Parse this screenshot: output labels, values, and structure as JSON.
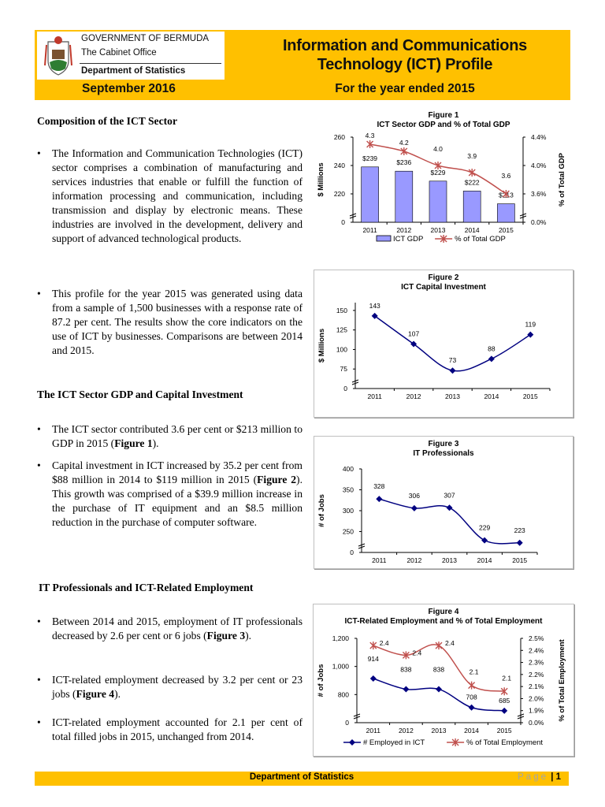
{
  "header": {
    "org_lines": [
      "GOVERNMENT OF BERMUDA",
      "The Cabinet Office",
      "Department of Statistics"
    ],
    "title_line1": "Information and Communications",
    "title_line2": "Technology (ICT) Profile",
    "date": "September 2016",
    "period": "For the year ended 2015",
    "brand_color": "#FFC000"
  },
  "body": {
    "sections": [
      {
        "heading": "Composition of the ICT Sector",
        "bullets": [
          "The Information and Communication Technologies (ICT) sector comprises a combination of manufacturing and services industries that enable or fulfill the function of information processing and communication, including transmission and display by electronic means. These industries are involved in the development, delivery and support of advanced technological products.",
          "This profile for the year 2015 was generated using data from a sample of 1,500 businesses with a response rate of 87.2 per cent. The results show the core indicators on the use of ICT by businesses. Comparisons are between 2014 and 2015."
        ]
      },
      {
        "heading": "The ICT Sector GDP and Capital Investment",
        "bullets": [
          "The ICT sector contributed 3.6 per cent or $213 million to GDP in 2015 (Figure 1).",
          "Capital investment in ICT increased by 35.2 per cent from $88 million in 2014 to $119 million in 2015 (Figure 2). This growth was comprised of a $39.9 million increase in the purchase of IT equipment and an $8.5 million reduction in the purchase of computer software."
        ]
      },
      {
        "heading": "IT Professionals and ICT-Related Employment",
        "bullets": [
          "Between 2014 and 2015, employment of IT professionals decreased by 2.6 per cent or 6 jobs (Figure 3).",
          "ICT-related employment decreased by 3.2 per cent or 23 jobs (Figure 4).",
          "ICT-related employment accounted for 2.1 per cent of total filled jobs in 2015, unchanged from 2014."
        ]
      }
    ]
  },
  "chart_data": [
    {
      "type": "bar+line",
      "title": "Figure 1",
      "subtitle": "ICT Sector GDP and % of Total GDP",
      "categories": [
        "2011",
        "2012",
        "2013",
        "2014",
        "2015"
      ],
      "ylabel": "$ Millions",
      "y2label": "% of Total GDP",
      "ylim": [
        200,
        260
      ],
      "yticks": [
        "0",
        "220",
        "240",
        "260"
      ],
      "ytick_values": [
        200,
        220,
        240,
        260
      ],
      "y2lim": [
        3.2,
        4.4
      ],
      "y2ticks": [
        "0.0%",
        "3.6%",
        "4.0%",
        "4.4%"
      ],
      "y2tick_values": [
        3.2,
        3.6,
        4.0,
        4.4
      ],
      "axis_break": true,
      "legend": "bottom",
      "series": [
        {
          "name": "ICT GDP",
          "kind": "bar",
          "axis": "left",
          "values": [
            239,
            236,
            229,
            222,
            213
          ],
          "labels": [
            "$239",
            "$236",
            "$229",
            "$222",
            "$213"
          ],
          "color": "#9999FF"
        },
        {
          "name": "% of Total GDP",
          "kind": "line",
          "marker": "star",
          "axis": "right",
          "values": [
            4.3,
            4.2,
            4.0,
            3.9,
            3.6
          ],
          "labels": [
            "4.3",
            "4.2",
            "4.0",
            "3.9",
            "3.6"
          ],
          "color": "#C0504D"
        }
      ]
    },
    {
      "type": "line",
      "title": "Figure 2",
      "subtitle": "ICT Capital Investment",
      "categories": [
        "2011",
        "2012",
        "2013",
        "2014",
        "2015"
      ],
      "ylabel": "$ Millions",
      "ylim": [
        50,
        160
      ],
      "yticks": [
        "0",
        "75",
        "100",
        "125",
        "150"
      ],
      "ytick_values": [
        50,
        75,
        100,
        125,
        150
      ],
      "axis_break": true,
      "series": [
        {
          "kind": "line",
          "marker": "diamond",
          "axis": "left",
          "values": [
            143,
            107,
            73,
            88,
            119
          ],
          "labels": [
            "143",
            "107",
            "73",
            "88",
            "119"
          ],
          "color": "#000080"
        }
      ]
    },
    {
      "type": "line",
      "title": "Figure 3",
      "subtitle": "IT Professionals",
      "categories": [
        "2011",
        "2012",
        "2013",
        "2014",
        "2015"
      ],
      "ylabel": "# of Jobs",
      "ylim": [
        200,
        400
      ],
      "yticks": [
        "0",
        "250",
        "300",
        "350",
        "400"
      ],
      "ytick_values": [
        200,
        250,
        300,
        350,
        400
      ],
      "axis_break": true,
      "series": [
        {
          "kind": "line",
          "marker": "diamond",
          "axis": "left",
          "values": [
            328,
            306,
            307,
            229,
            223
          ],
          "labels": [
            "328",
            "306",
            "307",
            "229",
            "223"
          ],
          "color": "#000080"
        }
      ]
    },
    {
      "type": "line",
      "title": "Figure 4",
      "subtitle": "ICT-Related Employment and % of Total Employment",
      "categories": [
        "2011",
        "2012",
        "2013",
        "2014",
        "2015"
      ],
      "ylabel": "# of Jobs",
      "y2label": "% of Total Employment",
      "ylim": [
        600,
        1200
      ],
      "yticks": [
        "0",
        "800",
        "1,000",
        "1,200"
      ],
      "ytick_values": [
        600,
        800,
        1000,
        1200
      ],
      "y2lim": [
        1.8,
        2.5
      ],
      "y2ticks": [
        "0.0%",
        "1.9%",
        "2.0%",
        "2.1%",
        "2.2%",
        "2.3%",
        "2.4%",
        "2.5%"
      ],
      "y2tick_values": [
        1.8,
        1.9,
        2.0,
        2.1,
        2.2,
        2.3,
        2.4,
        2.5
      ],
      "axis_break": true,
      "legend": "bottom",
      "series": [
        {
          "name": "# Employed in ICT",
          "kind": "line",
          "marker": "diamond",
          "axis": "left",
          "values": [
            914,
            838,
            838,
            708,
            685
          ],
          "labels": [
            "914",
            "838",
            "838",
            "708",
            "685"
          ],
          "color": "#000080"
        },
        {
          "name": "% of Total Employment",
          "kind": "line",
          "marker": "star",
          "axis": "right",
          "values": [
            2.44,
            2.36,
            2.44,
            2.11,
            2.06
          ],
          "labels": [
            "2.4",
            "2.4",
            "2.4",
            "2.1",
            "2.1"
          ],
          "color": "#C0504D"
        }
      ]
    }
  ],
  "footer": {
    "department": "Department of Statistics",
    "page_word": "Page",
    "page_number": "| 1"
  }
}
